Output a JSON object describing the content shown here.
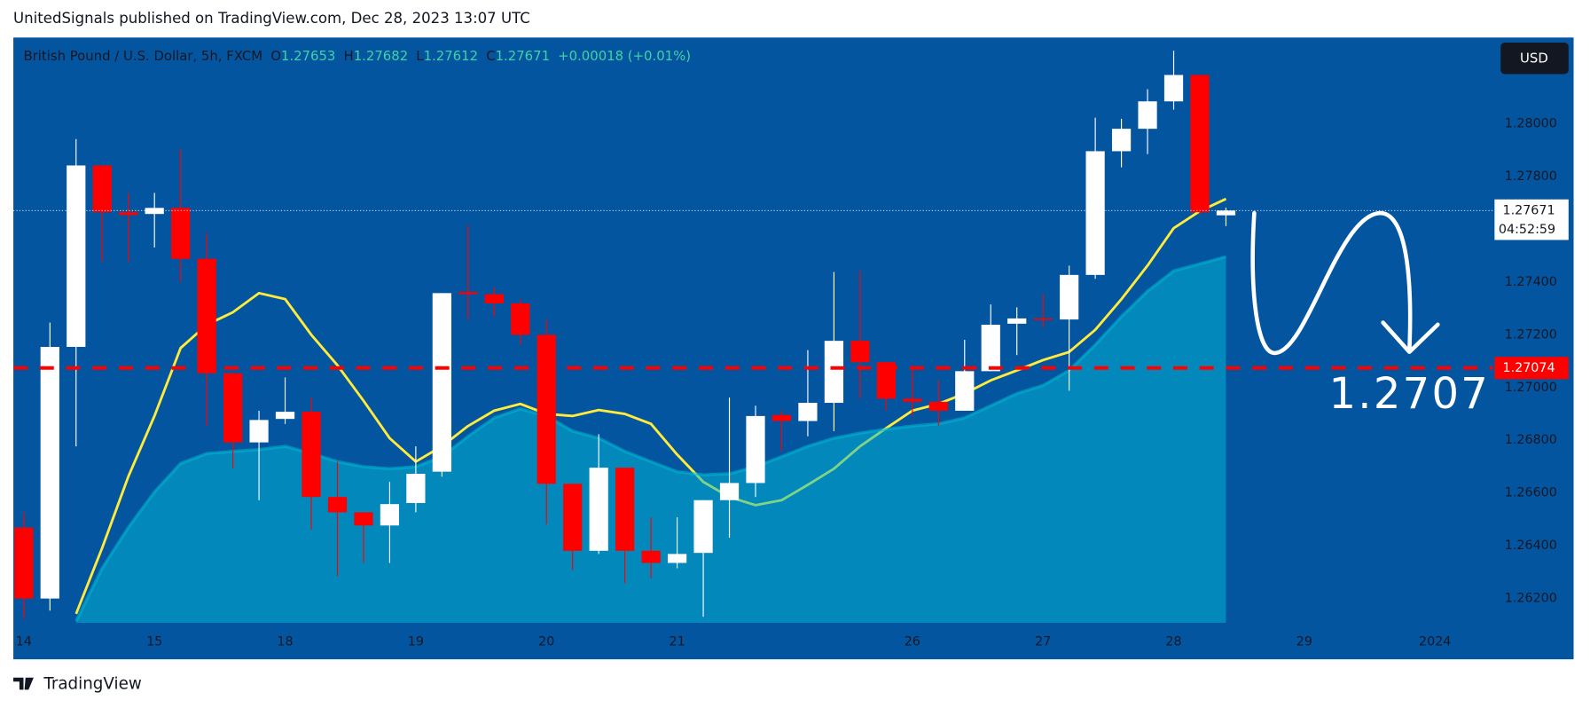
{
  "header": "UnitedSignals published on TradingView.com, Dec 28, 2023 13:07 UTC",
  "footer_brand": "TradingView",
  "currency_button": "USD",
  "chart_data": {
    "type": "candlestick",
    "symbol": "British Pound / U.S. Dollar, 5h, FXCM",
    "ohlc_labels": [
      "O",
      "H",
      "L",
      "C"
    ],
    "change": "+0.00018 (+0.01%)",
    "up_color": "#ffffff",
    "down_color": "#ff0000",
    "open": [
      1.26469,
      1.262,
      1.27154,
      1.27842,
      1.27665,
      1.27658,
      1.27681,
      1.27488,
      1.27054,
      1.26792,
      1.26881,
      1.26908,
      1.26585,
      1.26527,
      1.26477,
      1.26562,
      1.26681,
      1.27362,
      1.27354,
      1.27319,
      1.272,
      1.26635,
      1.26381,
      1.26696,
      1.26381,
      1.26335,
      1.26373,
      1.26573,
      1.26638,
      1.26896,
      1.26873,
      1.26942,
      1.27177,
      1.27096,
      1.26958,
      1.26946,
      1.26912,
      1.27062,
      1.27242,
      1.27262,
      1.27258,
      1.27427,
      1.27896,
      1.27981,
      1.28085,
      1.28185,
      1.27653
    ],
    "high": [
      1.26527,
      1.27246,
      1.27942,
      1.27842,
      1.27738,
      1.27738,
      1.27904,
      1.27585,
      1.27054,
      1.26912,
      1.27038,
      1.26962,
      1.26719,
      1.26527,
      1.26642,
      1.26777,
      1.27358,
      1.27615,
      1.27381,
      1.27335,
      1.27258,
      1.26635,
      1.26823,
      1.26696,
      1.26508,
      1.26508,
      1.26573,
      1.26962,
      1.26931,
      1.26912,
      1.27142,
      1.27438,
      1.27442,
      1.27096,
      1.27065,
      1.27027,
      1.27181,
      1.27315,
      1.27304,
      1.27354,
      1.27462,
      1.28023,
      1.28019,
      1.28131,
      1.28277,
      1.28185,
      1.27682
    ],
    "low": [
      1.26123,
      1.26154,
      1.26777,
      1.27477,
      1.27477,
      1.27531,
      1.274,
      1.26854,
      1.26692,
      1.26573,
      1.26862,
      1.26462,
      1.26285,
      1.26335,
      1.26335,
      1.26527,
      1.26662,
      1.27258,
      1.27269,
      1.27162,
      1.26481,
      1.26308,
      1.26369,
      1.26258,
      1.26277,
      1.26315,
      1.26131,
      1.26431,
      1.26585,
      1.26758,
      1.26815,
      1.26835,
      1.26958,
      1.26912,
      1.26892,
      1.26854,
      1.26912,
      1.27062,
      1.27123,
      1.27227,
      1.26988,
      1.27412,
      1.27835,
      1.27885,
      1.28054,
      1.27658,
      1.27612
    ],
    "close": [
      1.262,
      1.27154,
      1.27842,
      1.27665,
      1.27654,
      1.27681,
      1.27488,
      1.27054,
      1.26792,
      1.26877,
      1.26908,
      1.26585,
      1.26527,
      1.26477,
      1.26558,
      1.26673,
      1.27358,
      1.27354,
      1.27319,
      1.272,
      1.26635,
      1.26381,
      1.26696,
      1.26381,
      1.26335,
      1.26369,
      1.26573,
      1.26638,
      1.26892,
      1.26873,
      1.26942,
      1.27177,
      1.27096,
      1.26958,
      1.26946,
      1.26912,
      1.27062,
      1.27238,
      1.27262,
      1.27258,
      1.27427,
      1.27896,
      1.27981,
      1.28085,
      1.28185,
      1.27665,
      1.27671
    ],
    "series": [
      {
        "color": "#ffeb3b",
        "values": [
          null,
          null,
          1.26142,
          1.26392,
          1.26662,
          1.26892,
          1.2715,
          1.27238,
          1.27285,
          1.27358,
          1.27335,
          1.272,
          1.27085,
          1.2695,
          1.26808,
          1.26719,
          1.26777,
          1.26854,
          1.26912,
          1.26938,
          1.269,
          1.26892,
          1.26915,
          1.269,
          1.26862,
          1.26746,
          1.26642,
          1.26585,
          1.26554,
          1.26573,
          1.26631,
          1.26692,
          1.26777,
          1.26846,
          1.26912,
          1.26938,
          1.26977,
          1.27027,
          1.27065,
          1.27104,
          1.27135,
          1.27219,
          1.27335,
          1.27462,
          1.27604,
          1.27669,
          1.27715
        ]
      },
      {
        "color": "#00bcd4",
        "fill": true,
        "values": [
          null,
          null,
          1.26115,
          1.26315,
          1.26469,
          1.26604,
          1.26712,
          1.2675,
          1.26758,
          1.26765,
          1.26777,
          1.2675,
          1.26719,
          1.267,
          1.26692,
          1.267,
          1.26738,
          1.26815,
          1.26885,
          1.26919,
          1.26892,
          1.26835,
          1.26808,
          1.26758,
          1.26719,
          1.26681,
          1.26669,
          1.26673,
          1.267,
          1.26738,
          1.26777,
          1.26808,
          1.26827,
          1.26842,
          1.26854,
          1.26862,
          1.26885,
          1.26931,
          1.26977,
          1.27008,
          1.27065,
          1.27162,
          1.27269,
          1.27365,
          1.27442,
          1.27469,
          1.27496
        ]
      }
    ],
    "xlim": [
      -0.4,
      56.2
    ],
    "xticks": [
      {
        "value": 0,
        "label": "14"
      },
      {
        "value": 5,
        "label": "15"
      },
      {
        "value": 10,
        "label": "18"
      },
      {
        "value": 15,
        "label": "19"
      },
      {
        "value": 20,
        "label": "20"
      },
      {
        "value": 25,
        "label": "21"
      },
      {
        "value": 34,
        "label": "26"
      },
      {
        "value": 39,
        "label": "27"
      },
      {
        "value": 44,
        "label": "28"
      },
      {
        "value": 49,
        "label": "29"
      },
      {
        "value": 54,
        "label": "2024"
      }
    ],
    "ylim": [
      1.26108,
      1.28327
    ],
    "yticks": [
      {
        "value": 1.28,
        "label": "1.28000"
      },
      {
        "value": 1.278,
        "label": "1.27800"
      },
      {
        "value": 1.274,
        "label": "1.27400"
      },
      {
        "value": 1.272,
        "label": "1.27200"
      },
      {
        "value": 1.27,
        "label": "1.27000"
      },
      {
        "value": 1.268,
        "label": "1.26800"
      },
      {
        "value": 1.266,
        "label": "1.26600"
      },
      {
        "value": 1.264,
        "label": "1.26400"
      },
      {
        "value": 1.262,
        "label": "1.26200"
      }
    ],
    "level": 1.27074,
    "level_color": "#ff0000",
    "countdown": "04:52:59",
    "annotation": "1.2707"
  }
}
